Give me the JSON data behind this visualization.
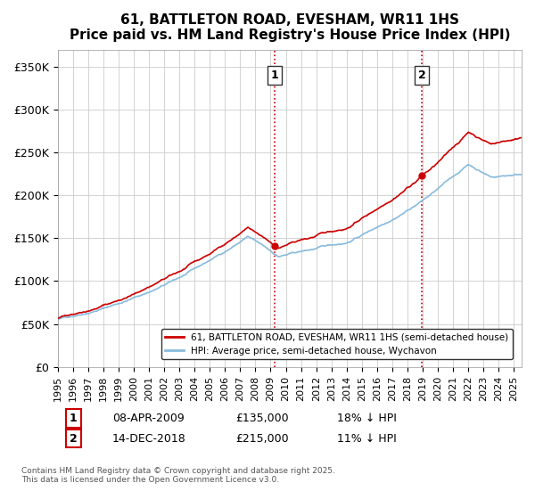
{
  "title": "61, BATTLETON ROAD, EVESHAM, WR11 1HS",
  "subtitle": "Price paid vs. HM Land Registry's House Price Index (HPI)",
  "ylabel_ticks": [
    "£0",
    "£50K",
    "£100K",
    "£150K",
    "£200K",
    "£250K",
    "£300K",
    "£350K"
  ],
  "ytick_values": [
    0,
    50000,
    100000,
    150000,
    200000,
    250000,
    300000,
    350000
  ],
  "ylim": [
    0,
    370000
  ],
  "xlim_start": 1995.0,
  "xlim_end": 2025.5,
  "line1_color": "#cc0000",
  "line2_color": "#88bbdd",
  "marker1_date": 2009.27,
  "marker2_date": 2018.95,
  "marker1_label": "1",
  "marker2_label": "2",
  "vline_color": "#cc0000",
  "vline_style": ":",
  "legend_line1": "61, BATTLETON ROAD, EVESHAM, WR11 1HS (semi-detached house)",
  "legend_line2": "HPI: Average price, semi-detached house, Wychavon",
  "annotation1": "1    08-APR-2009    £135,000    18% ↓ HPI",
  "annotation2": "2    14-DEC-2018    £215,000    11% ↓ HPI",
  "footnote": "Contains HM Land Registry data © Crown copyright and database right 2025.\nThis data is licensed under the Open Government Licence v3.0.",
  "background_color": "#ffffff",
  "grid_color": "#cccccc"
}
